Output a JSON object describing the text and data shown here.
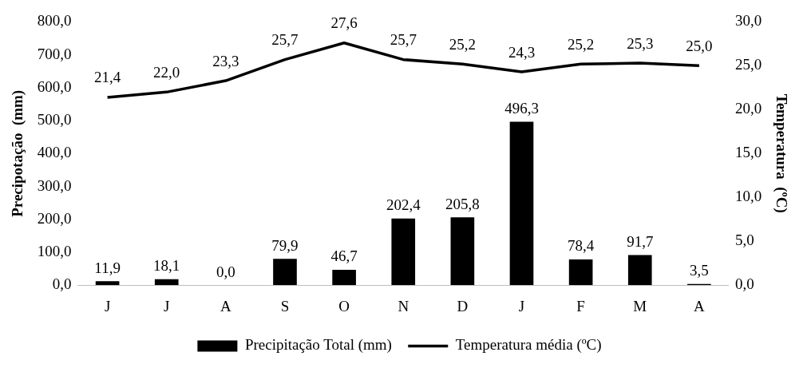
{
  "chart_data": {
    "type": "bar",
    "categories": [
      "J",
      "J",
      "A",
      "S",
      "O",
      "N",
      "D",
      "J",
      "F",
      "M",
      "A"
    ],
    "ylabel": "Precipotação  (mm)",
    "y2label": "Temperatura  (ºC)",
    "series": [
      {
        "name": "Precipitação Total (mm)",
        "color": "#000000",
        "values": [
          11.9,
          18.1,
          0.0,
          79.9,
          46.7,
          202.4,
          205.8,
          496.3,
          78.4,
          91.7,
          3.5
        ],
        "value_labels": [
          "11,9",
          "18,1",
          "0,0",
          "79,9",
          "46,7",
          "202,4",
          "205,8",
          "496,3",
          "78,4",
          "91,7",
          "3,5"
        ]
      },
      {
        "name": "Temperatura média (ºC)",
        "type": "line",
        "axis": "y2",
        "color": "#000000",
        "values": [
          21.4,
          22.0,
          23.3,
          25.7,
          27.6,
          25.7,
          25.2,
          24.3,
          25.2,
          25.3,
          25.0
        ],
        "value_labels": [
          "21,4",
          "22,0",
          "23,3",
          "25,7",
          "27,6",
          "25,7",
          "25,2",
          "24,3",
          "25,2",
          "25,3",
          "25,0"
        ]
      }
    ],
    "ylim": [
      0,
      800
    ],
    "yticks": [
      {
        "value": 0,
        "label": "0,0"
      },
      {
        "value": 100,
        "label": "100,0"
      },
      {
        "value": 200,
        "label": "200,0"
      },
      {
        "value": 300,
        "label": "300,0"
      },
      {
        "value": 400,
        "label": "400,0"
      },
      {
        "value": 500,
        "label": "500,0"
      },
      {
        "value": 600,
        "label": "600,0"
      },
      {
        "value": 700,
        "label": "700,0"
      },
      {
        "value": 800,
        "label": "800,0"
      }
    ],
    "y2lim": [
      0,
      30
    ],
    "y2ticks": [
      {
        "value": 0,
        "label": "0,0"
      },
      {
        "value": 5,
        "label": "5,0"
      },
      {
        "value": 10,
        "label": "10,0"
      },
      {
        "value": 15,
        "label": "15,0"
      },
      {
        "value": 20,
        "label": "20,0"
      },
      {
        "value": 25,
        "label": "25,0"
      },
      {
        "value": 30,
        "label": "30,0"
      }
    ],
    "legend": "bottom",
    "grid": false,
    "marker": "none",
    "line_style": "solid"
  }
}
